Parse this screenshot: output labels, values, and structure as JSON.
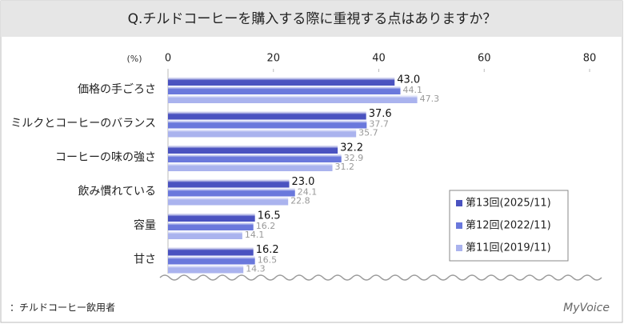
{
  "chart_data": {
    "type": "hbar",
    "title": "Q.チルドコーヒーを購入する際に重視する点はありますか？",
    "xlabel": "(%)",
    "categories": [
      "価格の手ごろさ",
      "ミルクとコーヒーのバランス",
      "コーヒーの味の強さ",
      "飲み慣れている",
      "容量",
      "甘さ"
    ],
    "series": [
      {
        "name": "第13回(2025/11)",
        "color": "#4a52c0",
        "values": [
          43.0,
          37.6,
          32.2,
          23.0,
          16.5,
          16.2
        ],
        "value_labels": [
          "43.0",
          "37.6",
          "32.2",
          "23.0",
          "16.5",
          "16.2"
        ]
      },
      {
        "name": "第12回(2022/11)",
        "color": "#6a78dc",
        "values": [
          44.1,
          37.7,
          32.9,
          24.1,
          16.2,
          16.5
        ],
        "value_labels": [
          "44.1",
          "37.7",
          "32.9",
          "24.1",
          "16.2",
          "16.5"
        ]
      },
      {
        "name": "第11回(2019/11)",
        "color": "#aab3ee",
        "values": [
          47.3,
          35.7,
          31.2,
          22.8,
          14.1,
          14.3
        ],
        "value_labels": [
          "47.3",
          "35.7",
          "31.2",
          "22.8",
          "14.1",
          "14.3"
        ]
      }
    ],
    "xlim": [
      0,
      80
    ],
    "xticks": [
      0,
      20,
      40,
      60,
      80
    ],
    "legend": "lower right",
    "note": "：チルドコーヒー飲用者",
    "brand": "MyVoice"
  }
}
